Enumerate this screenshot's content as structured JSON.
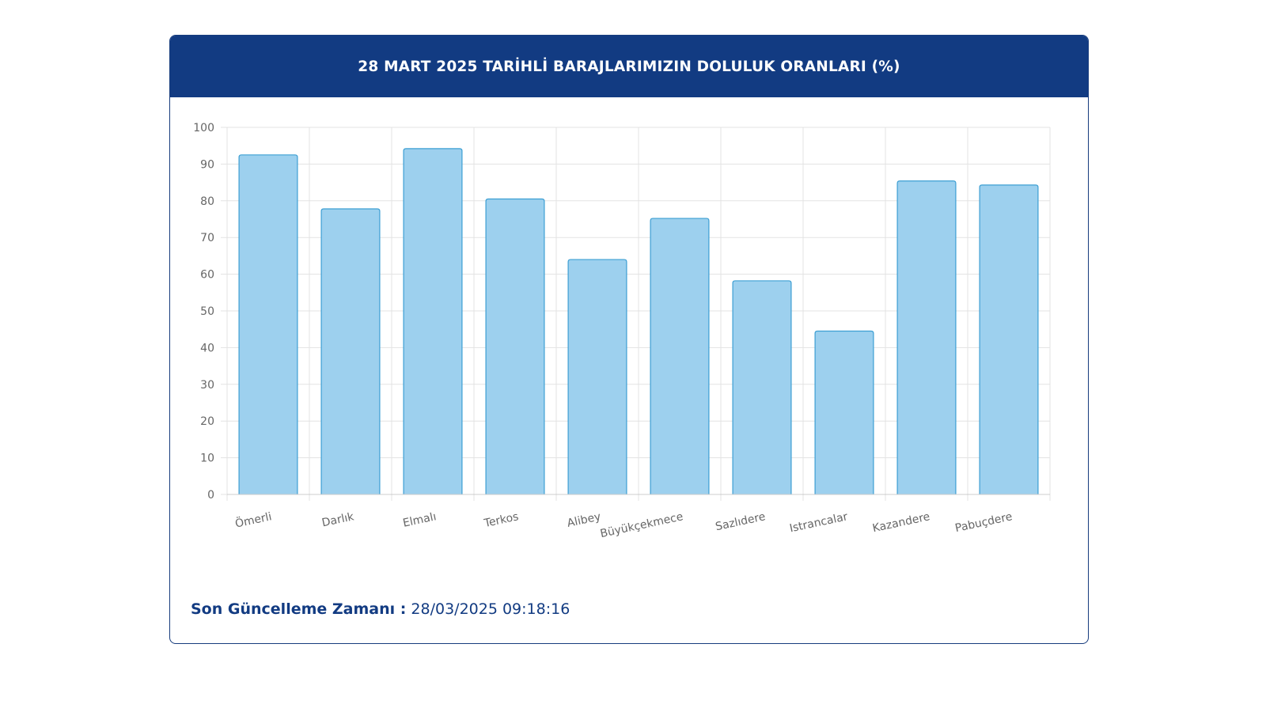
{
  "chart_data": {
    "type": "bar",
    "title": "28 MART 2025 TARİHLİ BARAJLARIMIZIN DOLULUK ORANLARI (%)",
    "categories": [
      "Ömerli",
      "Darlık",
      "Elmalı",
      "Terkos",
      "Alibey",
      "Büyükçekmece",
      "Sazlıdere",
      "Istrancalar",
      "Kazandere",
      "Pabuçdere"
    ],
    "values": [
      92.5,
      77.8,
      94.2,
      80.5,
      64.0,
      75.2,
      58.2,
      44.5,
      85.4,
      84.3
    ],
    "xlabel": "",
    "ylabel": "",
    "ylim": [
      0,
      100
    ],
    "yticks": [
      0,
      10,
      20,
      30,
      40,
      50,
      60,
      70,
      80,
      90,
      100
    ],
    "grid": true,
    "legend": "none",
    "bar_fill": "#9dd0ee",
    "bar_stroke": "#3d9fd3"
  },
  "footer": {
    "label": "Son Güncelleme Zamanı :",
    "timestamp": "28/03/2025 09:18:16"
  },
  "colors": {
    "header_bg": "#123b82",
    "border": "#173c7d",
    "grid": "#e3e3e3"
  }
}
